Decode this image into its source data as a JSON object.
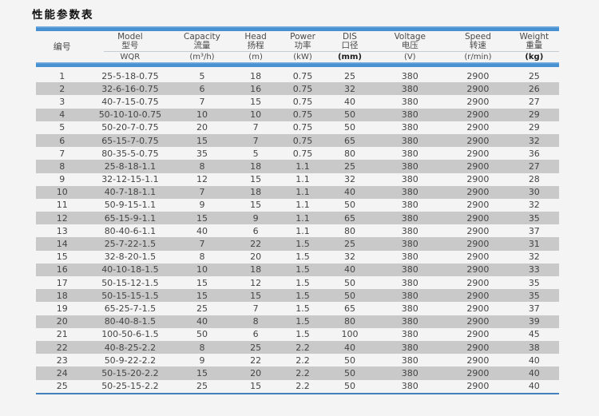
{
  "page": {
    "title": "性能参数表"
  },
  "theme": {
    "accent": "#4791d3",
    "stripe": "#c9c9c9",
    "page_background": "#f4f4f4",
    "bottom_rule": "#4281bd"
  },
  "table": {
    "columns": [
      {
        "en": "",
        "zh": "编号",
        "unit": "",
        "unit_bold": false
      },
      {
        "en": "Model",
        "zh": "型号",
        "unit": "WQR",
        "unit_bold": false
      },
      {
        "en": "Capacity",
        "zh": "流量",
        "unit": "(m³/h)",
        "unit_bold": false
      },
      {
        "en": "Head",
        "zh": "扬程",
        "unit": "(m)",
        "unit_bold": false
      },
      {
        "en": "Power",
        "zh": "功率",
        "unit": "(kW)",
        "unit_bold": false
      },
      {
        "en": "DIS",
        "zh": "口径",
        "unit": "(mm)",
        "unit_bold": true
      },
      {
        "en": "Voltage",
        "zh": "电压",
        "unit": "(V)",
        "unit_bold": false
      },
      {
        "en": "Speed",
        "zh": "转速",
        "unit": "(r/min)",
        "unit_bold": false
      },
      {
        "en": "Weight",
        "zh": "重量",
        "unit": "(kg)",
        "unit_bold": true
      }
    ],
    "rows": [
      [
        "1",
        "25-5-18-0.75",
        "5",
        "18",
        "0.75",
        "25",
        "380",
        "2900",
        "25"
      ],
      [
        "2",
        "32-6-16-0.75",
        "6",
        "16",
        "0.75",
        "32",
        "380",
        "2900",
        "26"
      ],
      [
        "3",
        "40-7-15-0.75",
        "7",
        "15",
        "0.75",
        "40",
        "380",
        "2900",
        "27"
      ],
      [
        "4",
        "50-10-10-0.75",
        "10",
        "10",
        "0.75",
        "50",
        "380",
        "2900",
        "29"
      ],
      [
        "5",
        "50-20-7-0.75",
        "20",
        "7",
        "0.75",
        "50",
        "380",
        "2900",
        "29"
      ],
      [
        "6",
        "65-15-7-0.75",
        "15",
        "7",
        "0.75",
        "65",
        "380",
        "2900",
        "32"
      ],
      [
        "7",
        "80-35-5-0.75",
        "35",
        "5",
        "0.75",
        "80",
        "380",
        "2900",
        "36"
      ],
      [
        "8",
        "25-8-18-1.1",
        "8",
        "18",
        "1.1",
        "25",
        "380",
        "2900",
        "27"
      ],
      [
        "9",
        "32-12-15-1.1",
        "12",
        "15",
        "1.1",
        "32",
        "380",
        "2900",
        "28"
      ],
      [
        "10",
        "40-7-18-1.1",
        "7",
        "18",
        "1.1",
        "40",
        "380",
        "2900",
        "30"
      ],
      [
        "11",
        "50-9-15-1.1",
        "9",
        "15",
        "1.1",
        "50",
        "380",
        "2900",
        "32"
      ],
      [
        "12",
        "65-15-9-1.1",
        "15",
        "9",
        "1.1",
        "65",
        "380",
        "2900",
        "35"
      ],
      [
        "13",
        "80-40-6-1.1",
        "40",
        "6",
        "1.1",
        "80",
        "380",
        "2900",
        "37"
      ],
      [
        "14",
        "25-7-22-1.5",
        "7",
        "22",
        "1.5",
        "25",
        "380",
        "2900",
        "31"
      ],
      [
        "15",
        "32-8-20-1.5",
        "8",
        "20",
        "1.5",
        "32",
        "380",
        "2900",
        "32"
      ],
      [
        "16",
        "40-10-18-1.5",
        "10",
        "18",
        "1.5",
        "40",
        "380",
        "2900",
        "33"
      ],
      [
        "17",
        "50-15-12-1.5",
        "15",
        "12",
        "1.5",
        "50",
        "380",
        "2900",
        "35"
      ],
      [
        "18",
        "50-15-15-1.5",
        "15",
        "15",
        "1.5",
        "50",
        "380",
        "2900",
        "35"
      ],
      [
        "19",
        "65-25-7-1.5",
        "25",
        "7",
        "1.5",
        "65",
        "380",
        "2900",
        "37"
      ],
      [
        "20",
        "80-40-8-1.5",
        "40",
        "8",
        "1.5",
        "80",
        "380",
        "2900",
        "39"
      ],
      [
        "21",
        "100-50-6-1.5",
        "50",
        "6",
        "1.5",
        "100",
        "380",
        "2900",
        "45"
      ],
      [
        "22",
        "40-8-25-2.2",
        "8",
        "25",
        "2.2",
        "40",
        "380",
        "2900",
        "38"
      ],
      [
        "23",
        "50-9-22-2.2",
        "9",
        "22",
        "2.2",
        "50",
        "380",
        "2900",
        "40"
      ],
      [
        "24",
        "50-15-20-2.2",
        "15",
        "20",
        "2.2",
        "50",
        "380",
        "2900",
        "40"
      ],
      [
        "25",
        "50-25-15-2.2",
        "25",
        "15",
        "2.2",
        "50",
        "380",
        "2900",
        "40"
      ]
    ]
  }
}
